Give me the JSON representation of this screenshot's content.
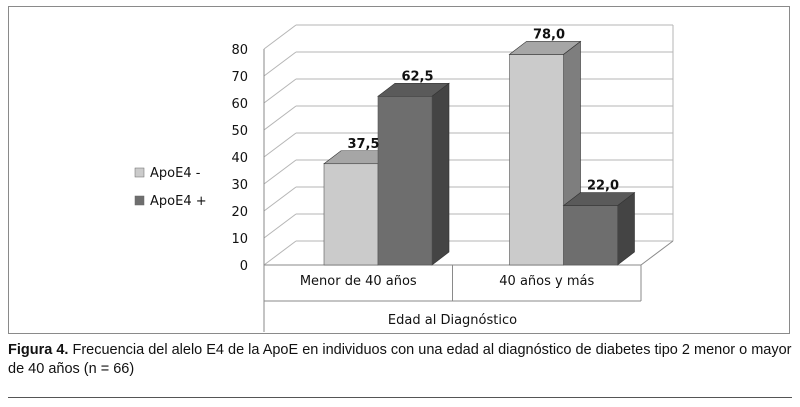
{
  "chart_data": {
    "type": "bar",
    "style": "3d-clustered-column",
    "categories": [
      "Menor de 40 años",
      "40 años y más"
    ],
    "series": [
      {
        "name": "ApoE4 -",
        "values": [
          37.5,
          78.0
        ],
        "color": "#cbcbcb"
      },
      {
        "name": "ApoE4 +",
        "values": [
          62.5,
          22.0
        ],
        "color": "#6e6e6e"
      }
    ],
    "value_labels": [
      [
        "37,5",
        "78,0"
      ],
      [
        "62,5",
        "22,0"
      ]
    ],
    "ylim": [
      0,
      80
    ],
    "yticks": [
      "0",
      "10",
      "20",
      "30",
      "40",
      "50",
      "60",
      "70",
      "80"
    ],
    "xlabel": "Edad al Diagnóstico",
    "legend_placement": "left",
    "grid": true
  },
  "caption": {
    "label": "Figura 4.",
    "text": " Frecuencia del alelo E4 de la ApoE en individuos con una edad al diagnóstico de diabetes tipo 2 menor o mayor de 40 años (n = 66)"
  }
}
